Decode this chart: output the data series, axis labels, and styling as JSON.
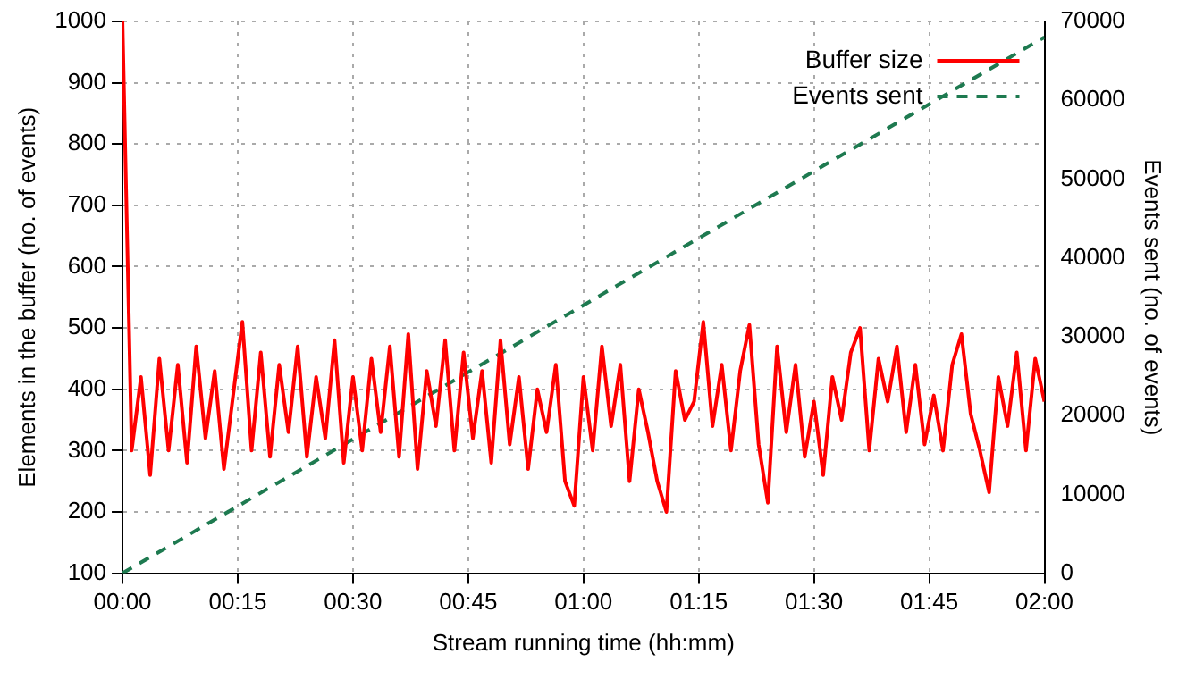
{
  "chart_data": {
    "type": "line",
    "xlabel": "Stream running time (hh:mm)",
    "ylabel": "Elements in the buffer (no. of events)",
    "y2label": "Events sent (no. of events)",
    "xlim": [
      0,
      2
    ],
    "xticks": [
      {
        "value": 0,
        "label": "00:00"
      },
      {
        "value": 0.25,
        "label": "00:15"
      },
      {
        "value": 0.5,
        "label": "00:30"
      },
      {
        "value": 0.75,
        "label": "00:45"
      },
      {
        "value": 1,
        "label": "01:00"
      },
      {
        "value": 1.25,
        "label": "01:15"
      },
      {
        "value": 1.5,
        "label": "01:30"
      },
      {
        "value": 1.75,
        "label": "01:45"
      },
      {
        "value": 2,
        "label": "02:00"
      }
    ],
    "ylim": [
      100,
      1000
    ],
    "yticks": [
      100,
      200,
      300,
      400,
      500,
      600,
      700,
      800,
      900,
      1000
    ],
    "y2lim": [
      0,
      70000
    ],
    "y2ticks": [
      0,
      10000,
      20000,
      30000,
      40000,
      50000,
      60000,
      70000
    ],
    "grid": true,
    "legend": "top right",
    "marker": "none",
    "series": [
      {
        "name": "Buffer size",
        "color": "#ff0000",
        "line_style": "solid",
        "x": [
          0,
          0.02,
          0.04,
          0.06,
          0.08,
          0.1,
          0.12,
          0.14,
          0.16,
          0.18,
          0.2,
          0.22,
          0.24,
          0.26,
          0.28,
          0.3,
          0.32,
          0.34,
          0.36,
          0.38,
          0.4,
          0.42,
          0.44,
          0.46,
          0.48,
          0.5,
          0.52,
          0.54,
          0.56,
          0.58,
          0.6,
          0.62,
          0.64,
          0.66,
          0.68,
          0.7,
          0.72,
          0.74,
          0.76,
          0.78,
          0.8,
          0.82,
          0.84,
          0.86,
          0.88,
          0.9,
          0.92,
          0.94,
          0.96,
          0.98,
          1,
          1.02,
          1.04,
          1.06,
          1.08,
          1.1,
          1.12,
          1.14,
          1.16,
          1.18,
          1.2,
          1.22,
          1.24,
          1.26,
          1.28,
          1.3,
          1.32,
          1.34,
          1.36,
          1.38,
          1.4,
          1.42,
          1.44,
          1.46,
          1.48,
          1.5,
          1.52,
          1.54,
          1.56,
          1.58,
          1.6,
          1.62,
          1.64,
          1.66,
          1.68,
          1.7,
          1.72,
          1.74,
          1.76,
          1.78,
          1.8,
          1.82,
          1.84,
          1.86,
          1.88,
          1.9,
          1.92,
          1.94,
          1.96,
          1.98,
          2
        ],
        "values": [
          1000,
          300,
          420,
          260,
          450,
          300,
          440,
          280,
          470,
          320,
          430,
          270,
          390,
          510,
          300,
          460,
          290,
          440,
          330,
          470,
          290,
          420,
          320,
          480,
          280,
          420,
          300,
          450,
          330,
          470,
          290,
          490,
          270,
          430,
          340,
          480,
          300,
          460,
          320,
          430,
          280,
          480,
          310,
          420,
          270,
          400,
          330,
          440,
          250,
          210,
          420,
          300,
          470,
          340,
          440,
          250,
          400,
          330,
          250,
          200,
          430,
          350,
          380,
          510,
          340,
          440,
          300,
          430,
          505,
          310,
          215,
          470,
          330,
          440,
          290,
          380,
          260,
          420,
          350,
          460,
          500,
          300,
          450,
          380,
          470,
          330,
          440,
          310,
          390,
          300,
          440,
          490,
          360,
          300,
          232,
          420,
          340,
          460,
          300,
          450,
          380
        ]
      },
      {
        "name": "Events sent",
        "color": "#1e7a50",
        "line_style": "dashed",
        "axis": "y2",
        "x": [
          0,
          2
        ],
        "values": [
          0,
          68000
        ]
      }
    ]
  }
}
